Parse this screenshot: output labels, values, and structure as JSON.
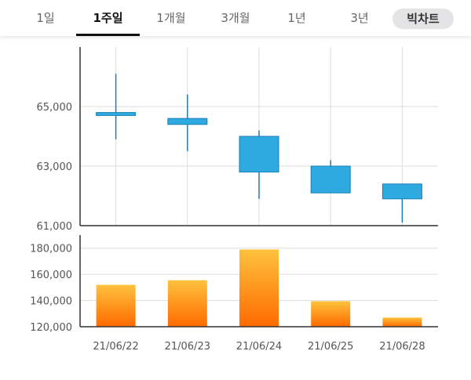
{
  "tabs": [
    {
      "label": "1일",
      "active": false
    },
    {
      "label": "1주일",
      "active": true
    },
    {
      "label": "1개월",
      "active": false
    },
    {
      "label": "3개월",
      "active": false
    },
    {
      "label": "1년",
      "active": false
    },
    {
      "label": "3년",
      "active": false
    }
  ],
  "big_chart_label": "빅차트",
  "colors": {
    "candle_fill": "#2eaae1",
    "candle_stroke": "#1a7fb8",
    "volume_top": "#ffc23d",
    "volume_bottom": "#ff6a00",
    "grid": "#dddddd",
    "axis": "#333333"
  },
  "chart_data": [
    {
      "type": "candlestick",
      "categories": [
        "21/06/22",
        "21/06/23",
        "21/06/24",
        "21/06/25",
        "21/06/28"
      ],
      "series": [
        {
          "values": [
            {
              "open": 64800,
              "close": 64700,
              "high": 66100,
              "low": 63900
            },
            {
              "open": 64600,
              "close": 64400,
              "high": 65400,
              "low": 63500
            },
            {
              "open": 64000,
              "close": 62800,
              "high": 64200,
              "low": 61900
            },
            {
              "open": 63000,
              "close": 62100,
              "high": 63200,
              "low": 62100
            },
            {
              "open": 62400,
              "close": 61900,
              "high": 62400,
              "low": 61100
            }
          ]
        }
      ],
      "ylim": [
        61000,
        67000
      ],
      "yticks": [
        "65,000",
        "63,000",
        "61,000"
      ],
      "ytick_values": [
        65000,
        63000,
        61000
      ],
      "grid": true
    },
    {
      "type": "bar",
      "categories": [
        "21/06/22",
        "21/06/23",
        "21/06/24",
        "21/06/25",
        "21/06/28"
      ],
      "values": [
        152000,
        155500,
        179000,
        139500,
        127000
      ],
      "ylim": [
        120000,
        190000
      ],
      "yticks": [
        "180,000",
        "160,000",
        "140,000",
        "120,000"
      ],
      "ytick_values": [
        180000,
        160000,
        140000,
        120000
      ],
      "xticks": [
        "21/06/22",
        "21/06/23",
        "21/06/24",
        "21/06/25",
        "21/06/28"
      ],
      "grid": true
    }
  ]
}
